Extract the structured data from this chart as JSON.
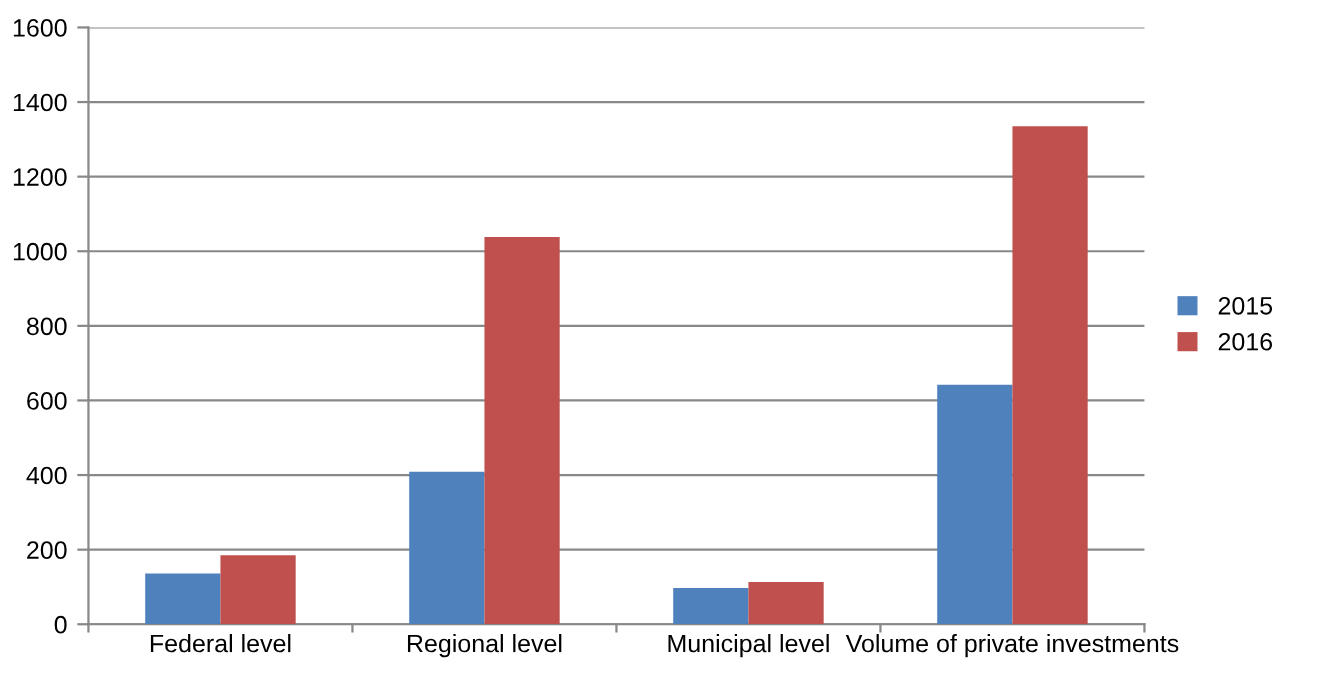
{
  "chart_data": {
    "type": "bar",
    "categories": [
      "Federal level",
      "Regional level",
      "Municipal level",
      "Volume of private investments"
    ],
    "series": [
      {
        "name": "2015",
        "color": "#4f81bd",
        "values": [
          136,
          409,
          97,
          642
        ]
      },
      {
        "name": "2016",
        "color": "#c0504d",
        "values": [
          185,
          1038,
          113,
          1335
        ]
      }
    ],
    "ylim": [
      0,
      1600
    ],
    "yticks": [
      0,
      200,
      400,
      600,
      800,
      1000,
      1200,
      1400,
      1600
    ],
    "grid": "y",
    "legend": "right"
  }
}
